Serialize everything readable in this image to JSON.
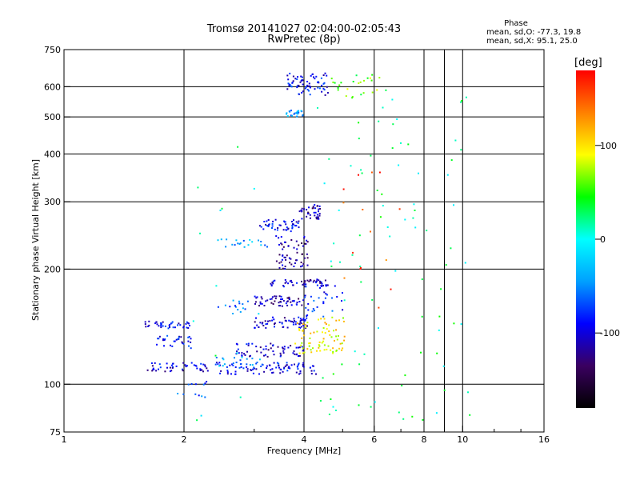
{
  "chart_data": {
    "type": "scatter",
    "title_line1": "Tromsø 20141027 02:04:00-02:05:43",
    "title_line2": "RwPretec (8p)",
    "xlabel": "Frequency [MHz]",
    "ylabel": "Stationary phase Virtual Height [km]",
    "x_scale": "log",
    "y_scale": "log",
    "xlim": [
      1,
      16
    ],
    "ylim": [
      75,
      750
    ],
    "x_ticks": [
      1,
      2,
      4,
      6,
      8,
      10,
      16
    ],
    "x_tick_labels": [
      "1",
      "2",
      "4",
      "6",
      "8",
      "10",
      "16"
    ],
    "y_ticks": [
      75,
      100,
      200,
      300,
      400,
      500,
      600,
      750
    ],
    "y_tick_labels": [
      "75",
      "100",
      "200",
      "300",
      "400",
      "500",
      "600",
      "750"
    ],
    "grid": true,
    "phase_box": {
      "title": "Phase",
      "line_o": "mean, sd,O: -77.3, 19.8",
      "line_x": "mean, sd,X:  95.1, 25.0"
    },
    "colorbar": {
      "label": "[deg]",
      "ticks": [
        100,
        0,
        -100
      ],
      "tick_labels": [
        "100",
        "0",
        "-100"
      ],
      "range": [
        -180,
        180
      ],
      "colormap": [
        "#000000",
        "#3a0060",
        "#0000ff",
        "#00a0ff",
        "#00ffff",
        "#00ff00",
        "#ffff00",
        "#ff8000",
        "#ff0000"
      ]
    },
    "clusters": [
      {
        "desc": "trace",
        "f": [
          1.6,
          2.1
        ],
        "h": [
          140,
          146
        ],
        "phase": -95,
        "n": 40
      },
      {
        "desc": "trace",
        "f": [
          1.7,
          2.1
        ],
        "h": [
          124,
          134
        ],
        "phase": -90,
        "n": 30
      },
      {
        "desc": "trace",
        "f": [
          1.6,
          2.3
        ],
        "h": [
          108,
          114
        ],
        "phase": -100,
        "n": 45
      },
      {
        "desc": "trace",
        "f": [
          1.9,
          2.3
        ],
        "h": [
          92,
          102
        ],
        "phase": -70,
        "n": 12
      },
      {
        "desc": "trace",
        "f": [
          2.4,
          4.3
        ],
        "h": [
          106,
          114
        ],
        "phase": -90,
        "n": 90
      },
      {
        "desc": "trace",
        "f": [
          2.7,
          4.0
        ],
        "h": [
          118,
          128
        ],
        "phase": -105,
        "n": 60
      },
      {
        "desc": "trace",
        "f": [
          3.0,
          4.1
        ],
        "h": [
          140,
          150
        ],
        "phase": -100,
        "n": 60
      },
      {
        "desc": "trace",
        "f": [
          3.0,
          4.0
        ],
        "h": [
          160,
          170
        ],
        "phase": -110,
        "n": 55
      },
      {
        "desc": "trace",
        "f": [
          3.3,
          4.6
        ],
        "h": [
          180,
          188
        ],
        "phase": -105,
        "n": 55
      },
      {
        "desc": "trace",
        "f": [
          3.4,
          4.1
        ],
        "h": [
          200,
          245
        ],
        "phase": -115,
        "n": 60
      },
      {
        "desc": "trace",
        "f": [
          3.1,
          3.9
        ],
        "h": [
          250,
          270
        ],
        "phase": -95,
        "n": 45
      },
      {
        "desc": "trace",
        "f": [
          3.9,
          4.4
        ],
        "h": [
          270,
          295
        ],
        "phase": -115,
        "n": 40
      },
      {
        "desc": "trace",
        "f": [
          2.4,
          3.4
        ],
        "h": [
          228,
          240
        ],
        "phase": -40,
        "n": 20
      },
      {
        "desc": "trace",
        "f": [
          2.4,
          2.9
        ],
        "h": [
          150,
          166
        ],
        "phase": -60,
        "n": 15
      },
      {
        "desc": "trace",
        "f": [
          2.4,
          3.2
        ],
        "h": [
          110,
          118
        ],
        "phase": -40,
        "n": 20
      },
      {
        "desc": "trace",
        "f": [
          3.8,
          5.1
        ],
        "h": [
          120,
          150
        ],
        "phase": 95,
        "n": 80
      },
      {
        "desc": "trace",
        "f": [
          4.0,
          5.0
        ],
        "h": [
          150,
          185
        ],
        "phase": -80,
        "n": 30
      },
      {
        "desc": "trace",
        "f": [
          3.6,
          4.0
        ],
        "h": [
          500,
          520
        ],
        "phase": -50,
        "n": 25
      },
      {
        "desc": "trace",
        "f": [
          3.6,
          4.6
        ],
        "h": [
          570,
          650
        ],
        "phase": -90,
        "n": 70
      },
      {
        "desc": "trace",
        "f": [
          4.6,
          6.4
        ],
        "h": [
          560,
          650
        ],
        "phase": 60,
        "n": 25
      },
      {
        "desc": "scatter",
        "f": [
          4.3,
          10.5
        ],
        "h": [
          80,
          600
        ],
        "phase": 20,
        "n": 90
      },
      {
        "desc": "scatter",
        "f": [
          5.0,
          7.0
        ],
        "h": [
          150,
          370
        ],
        "phase": 150,
        "n": 15
      },
      {
        "desc": "scatter",
        "f": [
          2.0,
          3.2
        ],
        "h": [
          80,
          500
        ],
        "phase": 10,
        "n": 14
      }
    ]
  }
}
